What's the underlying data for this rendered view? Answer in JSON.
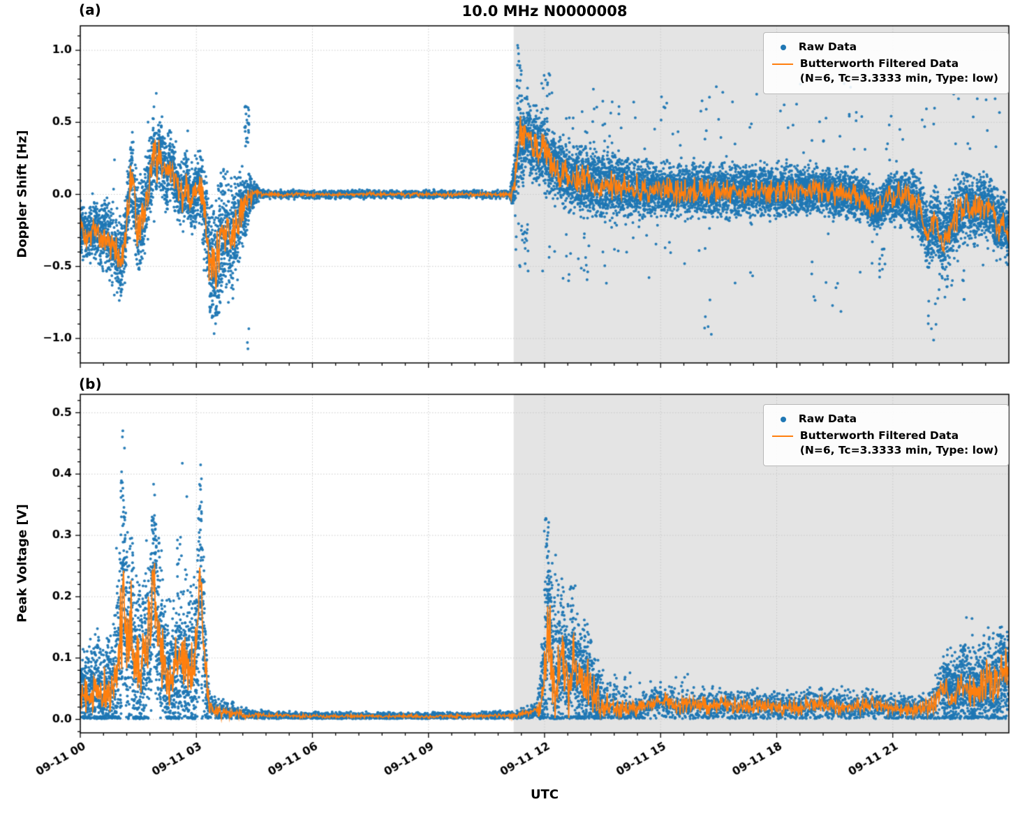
{
  "chart_data": {
    "type": "scatter",
    "title": "10.0 MHz N0000008",
    "xlabel": "UTC",
    "legend": {
      "raw": "Raw Data",
      "filtered_line1": "Butterworth Filtered Data",
      "filtered_line2": "(N=6, Tc=3.3333 min, Type: low)",
      "position": "upper right"
    },
    "colors": {
      "raw": "#1f77b4",
      "filtered": "#ff7f0e",
      "shade": "#e4e4e4",
      "grid": "#c8c8c8",
      "axis": "#000000"
    },
    "grid": "dotted",
    "xlim_hours": [
      0,
      24
    ],
    "x_ticks_hours": [
      0,
      3,
      6,
      9,
      12,
      15,
      18,
      21
    ],
    "x_tick_labels": [
      "09-11 00",
      "09-11 03",
      "09-11 06",
      "09-11 09",
      "09-11 12",
      "09-11 15",
      "09-11 18",
      "09-11 21"
    ],
    "shaded_region_hours": [
      11.2,
      24
    ],
    "panels": [
      {
        "id": "a",
        "tag": "(a)",
        "ylabel": "Doppler Shift [Hz]",
        "ylim": [
          -1.17,
          1.17
        ],
        "ymajor": 0.5,
        "yminor": 0.1,
        "yticks": [
          -1.0,
          -0.5,
          0.0,
          0.5,
          1.0
        ],
        "ytick_labels": [
          "−1.0",
          "−0.5",
          "0.0",
          "0.5",
          "1.0"
        ],
        "seed": 42,
        "clamp_zero": false,
        "center_keypoints": [
          [
            0,
            -0.24
          ],
          [
            0.2,
            -0.3
          ],
          [
            0.35,
            -0.22
          ],
          [
            0.5,
            -0.3
          ],
          [
            0.65,
            -0.26
          ],
          [
            0.8,
            -0.35
          ],
          [
            0.95,
            -0.42
          ],
          [
            1.05,
            -0.45
          ],
          [
            1.15,
            -0.3
          ],
          [
            1.25,
            -0.05
          ],
          [
            1.32,
            0.12
          ],
          [
            1.4,
            -0.02
          ],
          [
            1.5,
            -0.28
          ],
          [
            1.6,
            -0.18
          ],
          [
            1.7,
            -0.05
          ],
          [
            1.8,
            0.1
          ],
          [
            1.9,
            0.3
          ],
          [
            1.97,
            0.2
          ],
          [
            2.05,
            0.32
          ],
          [
            2.15,
            0.18
          ],
          [
            2.25,
            0.12
          ],
          [
            2.35,
            0.22
          ],
          [
            2.45,
            0.1
          ],
          [
            2.55,
            0.03
          ],
          [
            2.65,
            -0.03
          ],
          [
            2.75,
            0.1
          ],
          [
            2.85,
            -0.05
          ],
          [
            2.95,
            0.0
          ],
          [
            3.05,
            0.06
          ],
          [
            3.15,
            -0.05
          ],
          [
            3.25,
            -0.2
          ],
          [
            3.35,
            -0.45
          ],
          [
            3.45,
            -0.5
          ],
          [
            3.55,
            -0.42
          ],
          [
            3.65,
            -0.3
          ],
          [
            3.75,
            -0.22
          ],
          [
            3.85,
            -0.3
          ],
          [
            3.95,
            -0.35
          ],
          [
            4.05,
            -0.2
          ],
          [
            4.15,
            -0.12
          ],
          [
            4.25,
            -0.08
          ],
          [
            4.35,
            -0.02
          ],
          [
            4.5,
            0.01
          ],
          [
            4.8,
            0.0
          ],
          [
            11.15,
            0.0
          ],
          [
            11.25,
            0.15
          ],
          [
            11.35,
            0.42
          ],
          [
            11.45,
            0.35
          ],
          [
            11.55,
            0.45
          ],
          [
            11.65,
            0.32
          ],
          [
            11.75,
            0.38
          ],
          [
            11.85,
            0.3
          ],
          [
            11.95,
            0.33
          ],
          [
            12.1,
            0.25
          ],
          [
            12.3,
            0.18
          ],
          [
            12.5,
            0.15
          ],
          [
            12.7,
            0.12
          ],
          [
            12.9,
            0.1
          ],
          [
            13.2,
            0.08
          ],
          [
            13.5,
            0.06
          ],
          [
            14,
            0.05
          ],
          [
            14.5,
            0.03
          ],
          [
            15,
            0.04
          ],
          [
            15.5,
            0.02
          ],
          [
            16,
            0.03
          ],
          [
            16.5,
            0.02
          ],
          [
            17,
            0.02
          ],
          [
            17.5,
            0.03
          ],
          [
            18,
            0.02
          ],
          [
            18.5,
            0.02
          ],
          [
            19,
            0.03
          ],
          [
            19.5,
            0.01
          ],
          [
            20,
            0.0
          ],
          [
            20.3,
            -0.04
          ],
          [
            20.55,
            -0.12
          ],
          [
            20.8,
            -0.04
          ],
          [
            21.1,
            -0.01
          ],
          [
            21.4,
            -0.02
          ],
          [
            21.7,
            -0.1
          ],
          [
            21.9,
            -0.28
          ],
          [
            22.1,
            -0.18
          ],
          [
            22.3,
            -0.35
          ],
          [
            22.5,
            -0.22
          ],
          [
            22.7,
            -0.12
          ],
          [
            22.9,
            -0.06
          ],
          [
            23.1,
            -0.14
          ],
          [
            23.3,
            -0.06
          ],
          [
            23.5,
            -0.1
          ],
          [
            23.7,
            -0.22
          ],
          [
            23.85,
            -0.18
          ],
          [
            24,
            -0.28
          ]
        ],
        "spread_keypoints": [
          [
            0,
            0.08
          ],
          [
            0.5,
            0.1
          ],
          [
            1,
            0.13
          ],
          [
            1.5,
            0.15
          ],
          [
            2,
            0.12
          ],
          [
            2.5,
            0.1
          ],
          [
            3,
            0.1
          ],
          [
            3.3,
            0.17
          ],
          [
            3.6,
            0.2
          ],
          [
            3.9,
            0.18
          ],
          [
            4.2,
            0.12
          ],
          [
            4.5,
            0.03
          ],
          [
            4.8,
            0.013
          ],
          [
            11.1,
            0.013
          ],
          [
            11.3,
            0.14
          ],
          [
            11.7,
            0.12
          ],
          [
            12.2,
            0.1
          ],
          [
            12.8,
            0.1
          ],
          [
            13.5,
            0.11
          ],
          [
            14.5,
            0.09
          ],
          [
            16,
            0.08
          ],
          [
            18,
            0.08
          ],
          [
            20,
            0.07
          ],
          [
            21,
            0.08
          ],
          [
            21.8,
            0.1
          ],
          [
            22.5,
            0.12
          ],
          [
            23,
            0.1
          ],
          [
            23.5,
            0.1
          ],
          [
            24,
            0.09
          ]
        ],
        "outlier_clusters": [
          [
            3.5,
            0.35,
            -0.85,
            -0.55,
            40
          ],
          [
            4.3,
            0.12,
            0.3,
            0.62,
            22
          ],
          [
            4.33,
            0.06,
            -1.08,
            -0.92,
            3
          ],
          [
            11.35,
            0.12,
            0.62,
            1.06,
            18
          ],
          [
            11.4,
            0.35,
            -0.55,
            -0.2,
            22
          ],
          [
            12.05,
            0.3,
            0.5,
            0.85,
            14
          ],
          [
            12.5,
            1.2,
            -0.6,
            -0.25,
            14
          ],
          [
            13.5,
            1.0,
            0.35,
            0.65,
            10
          ],
          [
            14.5,
            4.0,
            0.3,
            0.68,
            26
          ],
          [
            15.0,
            5.0,
            -0.65,
            -0.3,
            22
          ],
          [
            16.2,
            0.25,
            -1.0,
            -0.6,
            5
          ],
          [
            18.0,
            4.0,
            0.35,
            0.8,
            24
          ],
          [
            19.6,
            1.5,
            -0.85,
            -0.45,
            10
          ],
          [
            20.6,
            0.4,
            -0.6,
            -0.32,
            12
          ],
          [
            21.0,
            3.0,
            0.3,
            0.6,
            18
          ],
          [
            22.0,
            0.25,
            -1.05,
            -0.7,
            5
          ],
          [
            22.4,
            1.2,
            -0.75,
            -0.45,
            16
          ],
          [
            23.2,
            1.4,
            0.3,
            0.7,
            12
          ]
        ]
      },
      {
        "id": "b",
        "tag": "(b)",
        "ylabel": "Peak Voltage [V]",
        "ylim": [
          -0.022,
          0.53
        ],
        "ymajor": 0.1,
        "yminor": 0.02,
        "yticks": [
          0.0,
          0.1,
          0.2,
          0.3,
          0.4,
          0.5
        ],
        "ytick_labels": [
          "0.0",
          "0.1",
          "0.2",
          "0.3",
          "0.4",
          "0.5"
        ],
        "seed": 77,
        "clamp_zero": true,
        "center_keypoints": [
          [
            0,
            0.045
          ],
          [
            0.2,
            0.03
          ],
          [
            0.4,
            0.05
          ],
          [
            0.6,
            0.035
          ],
          [
            0.8,
            0.05
          ],
          [
            0.95,
            0.07
          ],
          [
            1.05,
            0.13
          ],
          [
            1.12,
            0.21
          ],
          [
            1.2,
            0.12
          ],
          [
            1.3,
            0.17
          ],
          [
            1.4,
            0.09
          ],
          [
            1.55,
            0.07
          ],
          [
            1.7,
            0.1
          ],
          [
            1.82,
            0.16
          ],
          [
            1.92,
            0.23
          ],
          [
            2.0,
            0.15
          ],
          [
            2.1,
            0.1
          ],
          [
            2.25,
            0.07
          ],
          [
            2.4,
            0.06
          ],
          [
            2.5,
            0.09
          ],
          [
            2.6,
            0.1
          ],
          [
            2.75,
            0.09
          ],
          [
            2.9,
            0.09
          ],
          [
            3.0,
            0.1
          ],
          [
            3.1,
            0.24
          ],
          [
            3.2,
            0.12
          ],
          [
            3.3,
            0.03
          ],
          [
            3.45,
            0.015
          ],
          [
            3.7,
            0.012
          ],
          [
            4.0,
            0.01
          ],
          [
            4.5,
            0.007
          ],
          [
            5.0,
            0.006
          ],
          [
            6,
            0.005
          ],
          [
            8,
            0.005
          ],
          [
            10,
            0.005
          ],
          [
            11.2,
            0.006
          ],
          [
            11.6,
            0.01
          ],
          [
            11.9,
            0.02
          ],
          [
            12.0,
            0.09
          ],
          [
            12.1,
            0.16
          ],
          [
            12.2,
            0.09
          ],
          [
            12.3,
            0.05
          ],
          [
            12.45,
            0.1
          ],
          [
            12.6,
            0.06
          ],
          [
            12.75,
            0.1
          ],
          [
            12.9,
            0.05
          ],
          [
            13.05,
            0.07
          ],
          [
            13.25,
            0.04
          ],
          [
            13.5,
            0.025
          ],
          [
            13.8,
            0.02
          ],
          [
            14.2,
            0.015
          ],
          [
            14.6,
            0.02
          ],
          [
            15,
            0.03
          ],
          [
            15.4,
            0.022
          ],
          [
            15.8,
            0.025
          ],
          [
            16.2,
            0.02
          ],
          [
            16.6,
            0.025
          ],
          [
            17,
            0.02
          ],
          [
            17.5,
            0.022
          ],
          [
            18,
            0.02
          ],
          [
            18.5,
            0.018
          ],
          [
            19,
            0.025
          ],
          [
            19.5,
            0.02
          ],
          [
            20,
            0.02
          ],
          [
            20.5,
            0.025
          ],
          [
            21,
            0.018
          ],
          [
            21.5,
            0.015
          ],
          [
            22,
            0.02
          ],
          [
            22.3,
            0.05
          ],
          [
            22.5,
            0.035
          ],
          [
            22.8,
            0.055
          ],
          [
            23.1,
            0.04
          ],
          [
            23.4,
            0.065
          ],
          [
            23.6,
            0.05
          ],
          [
            23.8,
            0.07
          ],
          [
            24,
            0.075
          ]
        ],
        "spread_keypoints": [
          [
            0,
            0.03
          ],
          [
            0.8,
            0.04
          ],
          [
            1.1,
            0.08
          ],
          [
            1.4,
            0.06
          ],
          [
            1.9,
            0.07
          ],
          [
            2.2,
            0.05
          ],
          [
            2.6,
            0.06
          ],
          [
            3.0,
            0.06
          ],
          [
            3.15,
            0.08
          ],
          [
            3.35,
            0.012
          ],
          [
            3.8,
            0.008
          ],
          [
            4.5,
            0.004
          ],
          [
            5.5,
            0.003
          ],
          [
            10,
            0.003
          ],
          [
            11.3,
            0.004
          ],
          [
            11.8,
            0.006
          ],
          [
            12.05,
            0.07
          ],
          [
            12.4,
            0.06
          ],
          [
            12.8,
            0.05
          ],
          [
            13.2,
            0.035
          ],
          [
            13.6,
            0.02
          ],
          [
            14.2,
            0.012
          ],
          [
            15,
            0.014
          ],
          [
            16,
            0.013
          ],
          [
            17,
            0.012
          ],
          [
            18,
            0.012
          ],
          [
            19,
            0.013
          ],
          [
            20,
            0.012
          ],
          [
            21,
            0.01
          ],
          [
            21.8,
            0.012
          ],
          [
            22.3,
            0.025
          ],
          [
            23,
            0.03
          ],
          [
            23.5,
            0.035
          ],
          [
            24,
            0.04
          ]
        ],
        "outlier_clusters": [
          [
            0.5,
            0.9,
            0.08,
            0.15,
            20
          ],
          [
            1.1,
            0.1,
            0.3,
            0.5,
            14
          ],
          [
            1.15,
            0.2,
            0.2,
            0.33,
            16
          ],
          [
            1.35,
            0.1,
            0.2,
            0.33,
            8
          ],
          [
            1.9,
            0.15,
            0.2,
            0.33,
            16
          ],
          [
            2.05,
            0.1,
            0.22,
            0.3,
            6
          ],
          [
            2.3,
            0.5,
            0.12,
            0.2,
            12
          ],
          [
            2.55,
            0.1,
            0.2,
            0.3,
            8
          ],
          [
            3.0,
            0.25,
            0.15,
            0.28,
            12
          ],
          [
            3.1,
            0.1,
            0.28,
            0.42,
            10
          ],
          [
            12.05,
            0.12,
            0.2,
            0.33,
            16
          ],
          [
            12.2,
            0.3,
            0.13,
            0.28,
            14
          ],
          [
            12.6,
            0.5,
            0.1,
            0.22,
            20
          ],
          [
            13.0,
            0.5,
            0.07,
            0.14,
            12
          ],
          [
            14.8,
            2.0,
            0.04,
            0.08,
            18
          ],
          [
            22.6,
            0.6,
            0.06,
            0.12,
            10
          ],
          [
            23.2,
            1.3,
            0.08,
            0.17,
            18
          ]
        ]
      }
    ]
  }
}
